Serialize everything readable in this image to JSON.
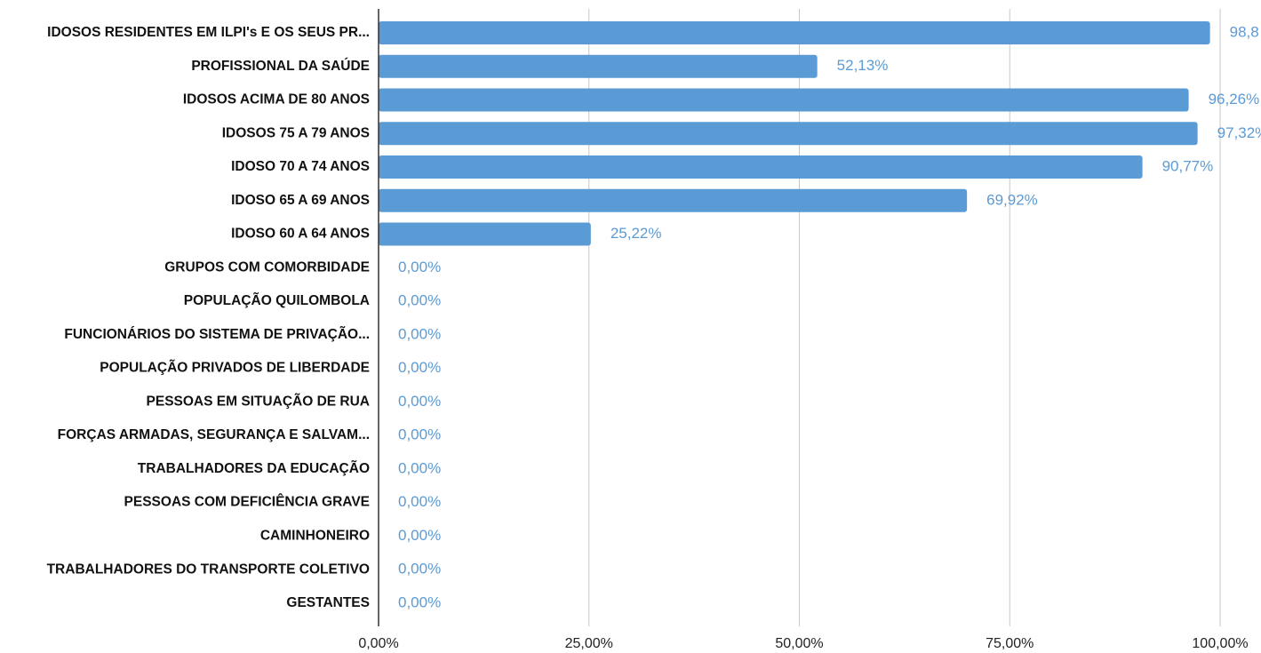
{
  "chart_data": {
    "type": "hbar",
    "categories": [
      "IDOSOS RESIDENTES EM ILPI's E OS SEUS PR...",
      "PROFISSIONAL DA SAÚDE",
      "IDOSOS ACIMA DE 80 ANOS",
      "IDOSOS 75 A 79 ANOS",
      "IDOSO 70 A 74 ANOS",
      "IDOSO 65 A 69 ANOS",
      "IDOSO 60 A 64 ANOS",
      "GRUPOS COM COMORBIDADE",
      "POPULAÇÃO QUILOMBOLA",
      "FUNCIONÁRIOS DO SISTEMA DE PRIVAÇÃO...",
      "POPULAÇÃO PRIVADOS DE LIBERDADE",
      "PESSOAS EM SITUAÇÃO DE RUA",
      "FORÇAS ARMADAS, SEGURANÇA E SALVAM...",
      "TRABALHADORES DA EDUCAÇÃO",
      "PESSOAS COM DEFICIÊNCIA GRAVE",
      "CAMINHONEIRO",
      "TRABALHADORES DO TRANSPORTE COLETIVO",
      "GESTANTES"
    ],
    "values": [
      98.8,
      52.13,
      96.26,
      97.32,
      90.77,
      69.92,
      25.22,
      0,
      0,
      0,
      0,
      0,
      0,
      0,
      0,
      0,
      0,
      0
    ],
    "value_labels": [
      "98,8",
      "52,13%",
      "96,26%",
      "97,32%",
      "90,77%",
      "69,92%",
      "25,22%",
      "0,00%",
      "0,00%",
      "0,00%",
      "0,00%",
      "0,00%",
      "0,00%",
      "0,00%",
      "0,00%",
      "0,00%",
      "0,00%",
      "0,00%"
    ],
    "color": "#5b9bd5",
    "xlim": [
      0,
      100
    ],
    "xticks": [
      {
        "value": 0,
        "label": "0,00%"
      },
      {
        "value": 25,
        "label": "25,00%"
      },
      {
        "value": 50,
        "label": "50,00%"
      },
      {
        "value": 75,
        "label": "75,00%"
      },
      {
        "value": 100,
        "label": "100,00%"
      }
    ],
    "grid": true
  }
}
